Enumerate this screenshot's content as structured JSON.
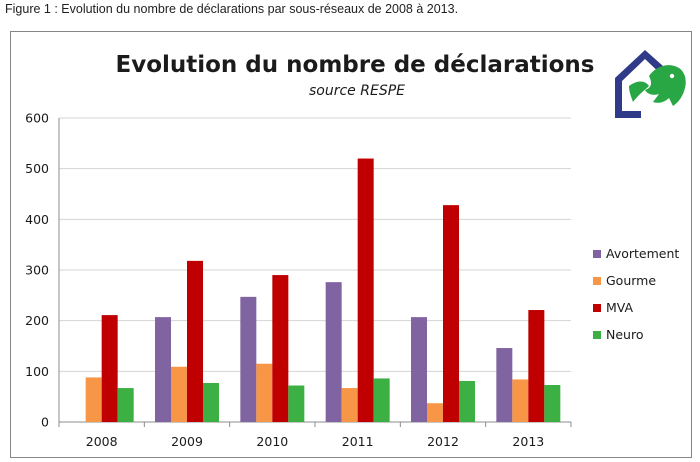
{
  "caption": "Figure 1 : Evolution du nombre de déclarations par sous-réseaux de 2008 à 2013.",
  "logo": {
    "name": "respe-horse-logo",
    "colors": {
      "house": "#2f3a89",
      "horse": "#2aa745"
    }
  },
  "chart_data": {
    "type": "bar",
    "title": "Evolution du nombre de déclarations",
    "subtitle": "source RESPE",
    "categories": [
      "2008",
      "2009",
      "2010",
      "2011",
      "2012",
      "2013"
    ],
    "series": [
      {
        "name": "Avortement",
        "color": "#8064a2",
        "values": [
          0,
          207,
          247,
          276,
          207,
          146
        ]
      },
      {
        "name": "Gourme",
        "color": "#f79646",
        "values": [
          88,
          109,
          115,
          67,
          37,
          84
        ]
      },
      {
        "name": "MVA",
        "color": "#c00000",
        "values": [
          211,
          318,
          290,
          520,
          428,
          221
        ]
      },
      {
        "name": "Neuro",
        "color": "#3cb043",
        "values": [
          67,
          77,
          72,
          86,
          81,
          73
        ]
      }
    ],
    "ylim": [
      0,
      600
    ],
    "yticks": [
      0,
      100,
      200,
      300,
      400,
      500,
      600
    ],
    "grid": true,
    "legend_position": "right"
  }
}
